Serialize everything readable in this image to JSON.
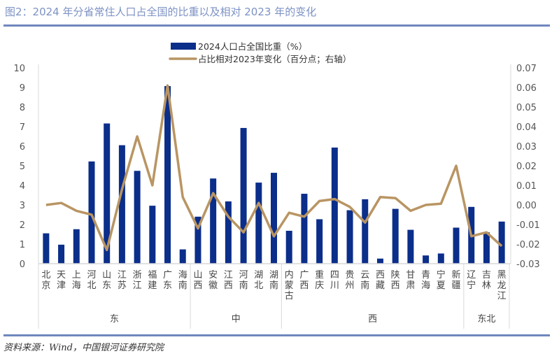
{
  "title": "图2：2024 年分省常住人口占全国的比重以及相对 2023 年的变化",
  "source": "资料来源：Wind，中国银河证券研究院",
  "colors": {
    "bar": "#0b2e8a",
    "line": "#b99563",
    "title": "#7d92c4",
    "rule": "#6f87bd"
  },
  "chart_data": {
    "type": "bar+line",
    "title": "图2：2024 年分省常住人口占全国的比重以及相对 2023 年的变化",
    "categories": [
      "北京",
      "天津",
      "上海",
      "河北",
      "山东",
      "江苏",
      "浙江",
      "福建",
      "广东",
      "海南",
      "山西",
      "安徽",
      "江西",
      "河南",
      "湖北",
      "湖南",
      "内蒙古",
      "广西",
      "重庆",
      "四川",
      "贵州",
      "云南",
      "西藏",
      "陕西",
      "甘肃",
      "青海",
      "宁夏",
      "新疆",
      "辽宁",
      "吉林",
      "黑龙江"
    ],
    "groups": [
      {
        "name": "东",
        "count": 10
      },
      {
        "name": "中",
        "count": 6
      },
      {
        "name": "西",
        "count": 12
      },
      {
        "name": "东北",
        "count": 3
      }
    ],
    "series": [
      {
        "name": "2024人口占全国比重（%）",
        "type": "bar",
        "axis": "left",
        "values": [
          1.55,
          0.97,
          1.76,
          5.22,
          7.16,
          6.05,
          4.74,
          2.96,
          9.07,
          0.73,
          2.4,
          4.35,
          3.18,
          6.93,
          4.14,
          4.64,
          1.68,
          3.57,
          2.27,
          5.93,
          2.73,
          3.29,
          0.26,
          2.8,
          1.73,
          0.42,
          0.52,
          1.84,
          2.9,
          1.6,
          2.15
        ]
      },
      {
        "name": "占比相对2023年变化（百分点；右轴）",
        "type": "line",
        "axis": "right",
        "values": [
          0.0,
          0.001,
          -0.003,
          -0.005,
          -0.023,
          0.008,
          0.035,
          0.01,
          0.061,
          0.004,
          -0.012,
          0.006,
          -0.006,
          -0.014,
          0.001,
          -0.016,
          -0.004,
          -0.006,
          0.002,
          0.003,
          -0.001,
          -0.009,
          0.004,
          0.0035,
          -0.003,
          0.0,
          0.0006,
          0.02,
          -0.016,
          -0.014,
          -0.021
        ]
      }
    ],
    "y_left": {
      "range": [
        0,
        10
      ],
      "ticks": [
        "0",
        "1",
        "2",
        "3",
        "4",
        "5",
        "6",
        "7",
        "8",
        "9",
        "10"
      ]
    },
    "y_right": {
      "range": [
        -0.03,
        0.07
      ],
      "ticks": [
        "-0.03",
        "-0.02",
        "-0.01",
        "0.00",
        "0.01",
        "0.02",
        "0.03",
        "0.04",
        "0.05",
        "0.06",
        "0.07"
      ]
    },
    "legend": "top-center",
    "grid": false
  }
}
